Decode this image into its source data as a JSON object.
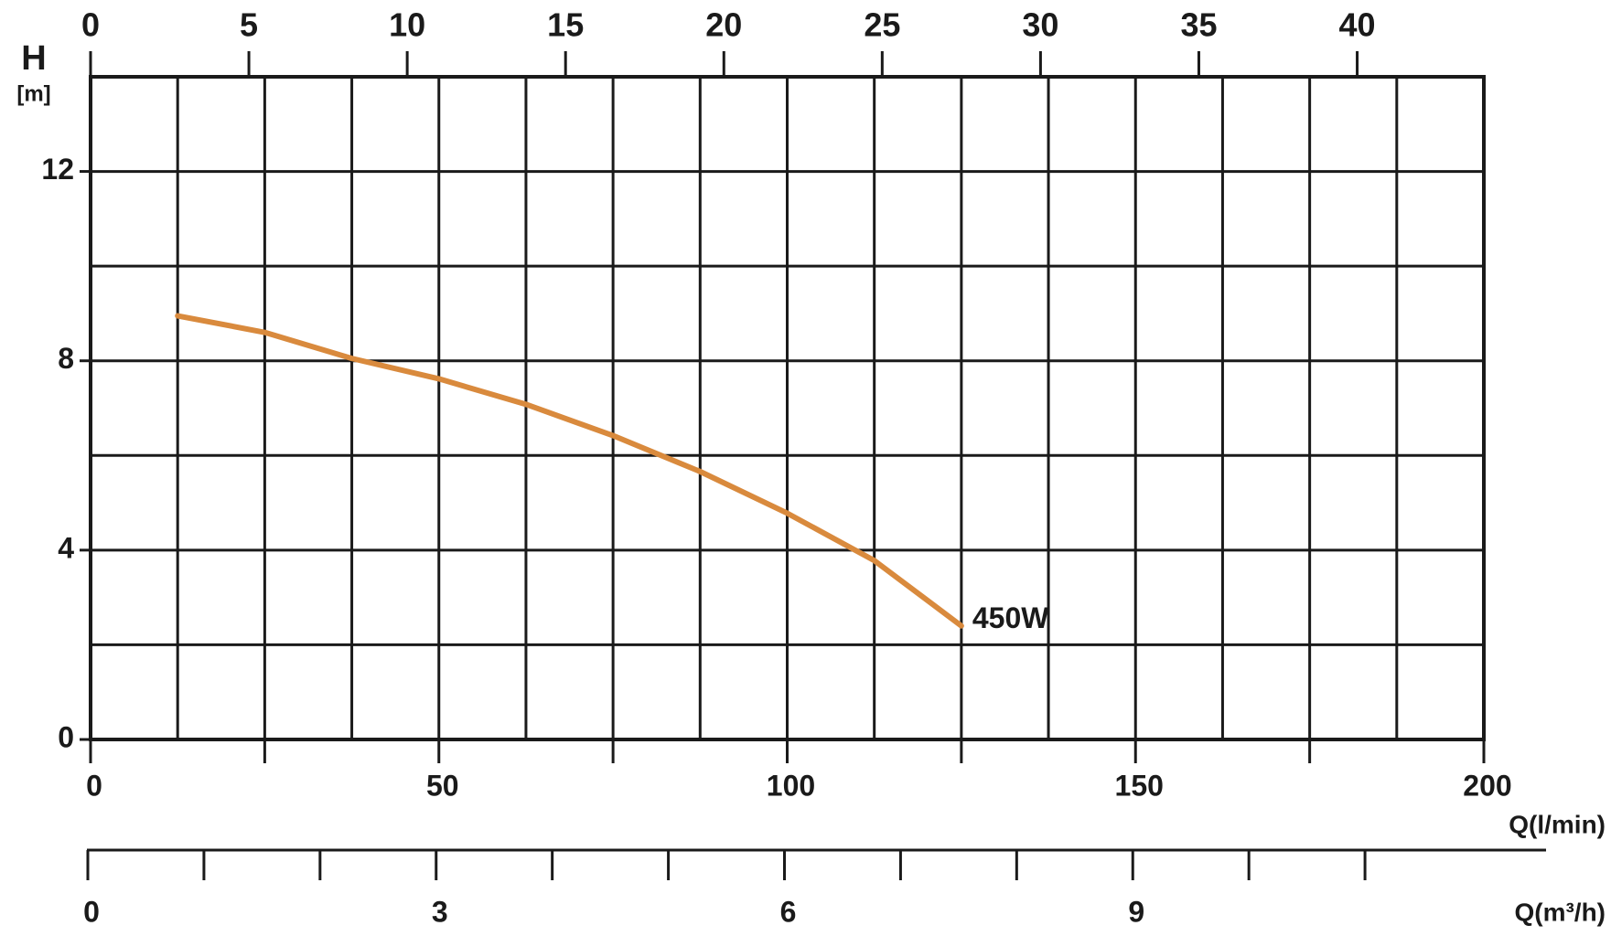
{
  "chart_data": {
    "type": "line",
    "ylabel": "H",
    "yunit": "[m]",
    "xlabel": "Q(l/min)",
    "x3label": "Q(m³/h)",
    "xlim": [
      0,
      200
    ],
    "xticks": [
      0,
      50,
      100,
      150,
      200
    ],
    "xminor_ticks": [
      25,
      75,
      125,
      175
    ],
    "xgrid": [
      12.5,
      25,
      37.5,
      50,
      62.5,
      75,
      87.5,
      100,
      112.5,
      125,
      137.5,
      150,
      162.5,
      175,
      187.5
    ],
    "ylim": [
      0,
      14
    ],
    "yticks": [
      0,
      4,
      8,
      12
    ],
    "ygrid": [
      2,
      4,
      6,
      8,
      10,
      12
    ],
    "x2lim": [
      0,
      44
    ],
    "x2ticks": [
      0,
      5,
      10,
      15,
      20,
      25,
      30,
      35,
      40
    ],
    "x3lim": [
      0,
      12
    ],
    "x3ticks": [
      0,
      3,
      6,
      9
    ],
    "x3minor_ticks": [
      1,
      2,
      4,
      5,
      7,
      8,
      10,
      11
    ],
    "grid": true,
    "series": [
      {
        "name": "450W",
        "color": "#d98a3d",
        "x": [
          12.5,
          25,
          37.5,
          50,
          62.5,
          75,
          87.5,
          100,
          112.5,
          125
        ],
        "values": [
          8.95,
          8.6,
          8.05,
          7.62,
          7.08,
          6.42,
          5.66,
          4.78,
          3.78,
          2.4
        ]
      }
    ]
  }
}
